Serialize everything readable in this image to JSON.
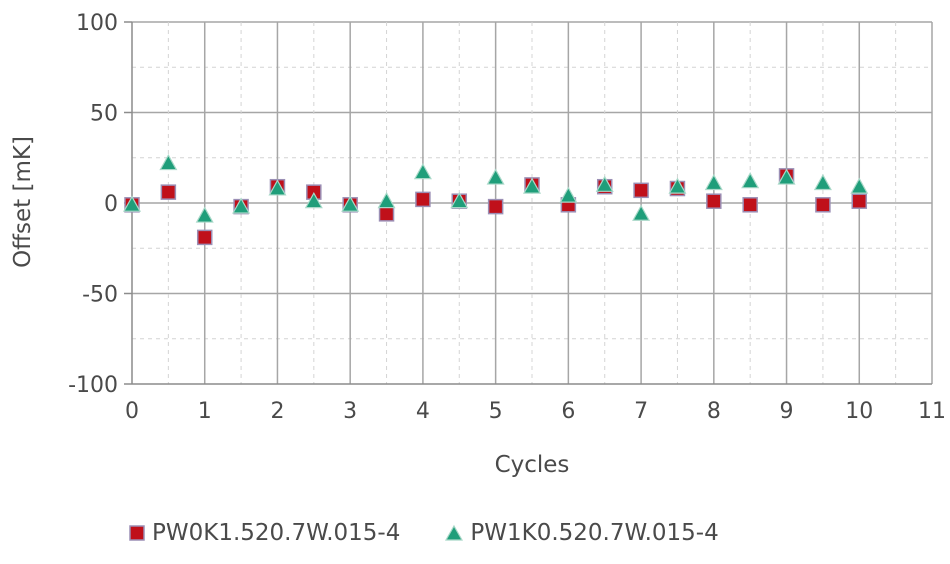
{
  "chart_data": {
    "type": "scatter",
    "xlabel": "Cycles",
    "ylabel": "Offset [mK]",
    "xlim": [
      0,
      11
    ],
    "ylim": [
      -100,
      100
    ],
    "x_ticks": [
      "0",
      "1",
      "2",
      "3",
      "4",
      "5",
      "6",
      "7",
      "8",
      "9",
      "10",
      "11"
    ],
    "y_ticks": [
      "100",
      "50",
      "0",
      "-50",
      "-100"
    ],
    "grid": true,
    "legend_position": "bottom",
    "series": [
      {
        "name": "PW0K1.520.7W.015-4",
        "marker": "square",
        "color": "#c0101a",
        "edge_color": "#9b8fb5",
        "x": [
          0,
          0.5,
          1,
          1.5,
          2,
          2.5,
          3,
          3.5,
          4,
          4.5,
          5,
          5.5,
          6,
          6.5,
          7,
          7.5,
          8,
          8.5,
          9,
          9.5,
          10
        ],
        "y": [
          -1,
          6,
          -19,
          -2,
          9,
          6,
          -1,
          -6,
          2,
          1,
          -2,
          10,
          -1,
          9,
          7,
          8,
          1,
          -1,
          15,
          -1,
          1
        ]
      },
      {
        "name": "PW1K0.520.7W.015-4",
        "marker": "triangle",
        "color": "#1f9e7a",
        "edge_color": "#a8d8c8",
        "x": [
          0,
          0.5,
          1,
          1.5,
          2,
          2.5,
          3,
          3.5,
          4,
          4.5,
          5,
          5.5,
          6,
          6.5,
          7,
          7.5,
          8,
          8.5,
          9,
          9.5,
          10
        ],
        "y": [
          -1,
          22,
          -7,
          -2,
          8,
          1,
          -1,
          1,
          17,
          1,
          14,
          9,
          4,
          10,
          -6,
          9,
          11,
          12,
          14,
          11,
          9
        ]
      }
    ]
  }
}
